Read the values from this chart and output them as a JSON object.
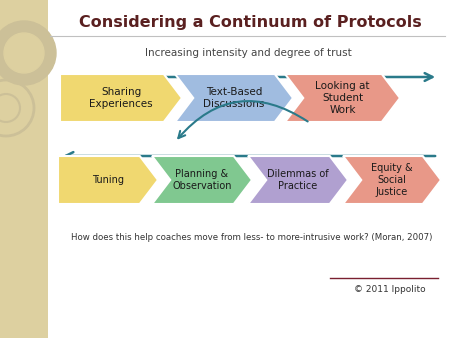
{
  "title": "Considering a Continuum of Protocols",
  "subtitle": "Increasing intensity and degree of trust",
  "bottom_text": "How does this help coaches move from less- to more-intrusive work? (Moran, 2007)",
  "copyright": "© 2011 Ippolito",
  "panel_color": "#ffffff",
  "left_strip_color": "#ddd0a0",
  "row1_items": [
    {
      "label": "Sharing\nExperiences",
      "color": "#f0d870"
    },
    {
      "label": "Text-Based\nDiscussions",
      "color": "#a0bce0"
    },
    {
      "label": "Looking at\nStudent\nWork",
      "color": "#e89888"
    }
  ],
  "row2_items": [
    {
      "label": "Tuning",
      "color": "#f0d870"
    },
    {
      "label": "Planning &\nObservation",
      "color": "#80c890"
    },
    {
      "label": "Dilemmas of\nPractice",
      "color": "#b0a0d0"
    },
    {
      "label": "Equity &\nSocial\nJustice",
      "color": "#e89888"
    }
  ],
  "arrow_color": "#2a7a8a",
  "title_color": "#5a2020",
  "text_color": "#333333",
  "subtitle_color": "#444444"
}
